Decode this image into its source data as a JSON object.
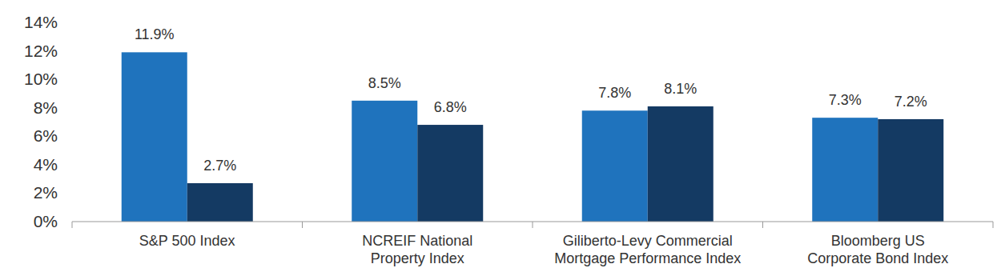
{
  "chart_data": {
    "type": "bar",
    "categories": [
      "S&P 500 Index",
      "NCREIF National\nProperty Index",
      "Giliberto-Levy Commercial\nMortgage Performance Index",
      "Bloomberg US\nCorporate Bond Index"
    ],
    "series": [
      {
        "color": "#1f73bd",
        "values": [
          11.9,
          8.5,
          7.8,
          7.3
        ],
        "value_labels": [
          "11.9%",
          "8.5%",
          "7.8%",
          "7.3%"
        ]
      },
      {
        "color": "#143a63",
        "values": [
          2.7,
          6.8,
          8.1,
          7.2
        ],
        "value_labels": [
          "2.7%",
          "6.8%",
          "8.1%",
          "7.2%"
        ]
      }
    ],
    "ylim": [
      0,
      14
    ],
    "yticks": [
      {
        "value": 0,
        "label": "0%"
      },
      {
        "value": 2,
        "label": "2%"
      },
      {
        "value": 4,
        "label": "4%"
      },
      {
        "value": 6,
        "label": "6%"
      },
      {
        "value": 8,
        "label": "8%"
      },
      {
        "value": 10,
        "label": "10%"
      },
      {
        "value": 12,
        "label": "12%"
      },
      {
        "value": 14,
        "label": "14%"
      }
    ],
    "grid": false,
    "data_labels": true
  }
}
